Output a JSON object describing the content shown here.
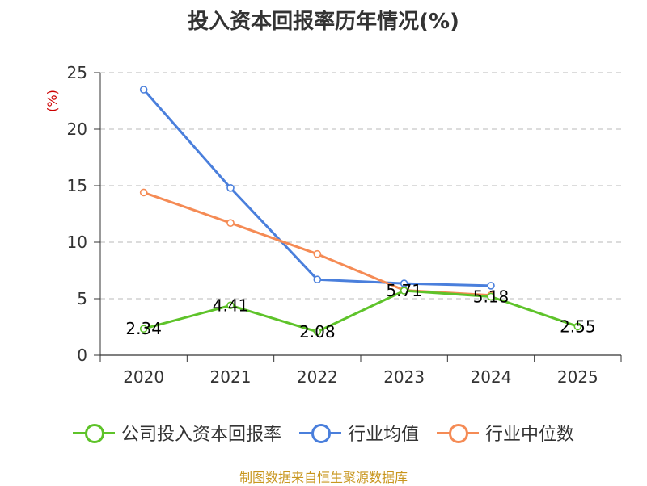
{
  "chart_data": {
    "type": "line",
    "title": "投入资本回报率历年情况(%)",
    "ylabel": "(%)",
    "xlabel": "",
    "categories": [
      "2020",
      "2021",
      "2022",
      "2023",
      "2024",
      "2025"
    ],
    "ylim": [
      0,
      25
    ],
    "yticks": [
      0,
      5,
      10,
      15,
      20,
      25
    ],
    "grid": true,
    "legend_position": "bottom",
    "series": [
      {
        "name": "公司投入资本回报率",
        "color": "#5ec32a",
        "values": [
          2.34,
          4.41,
          2.08,
          5.71,
          5.18,
          2.55
        ],
        "labels": [
          "2.34",
          "4.41",
          "2.08",
          "5.71",
          "5.18",
          "2.55"
        ]
      },
      {
        "name": "行业均值",
        "color": "#4a7fdc",
        "values": [
          23.5,
          14.8,
          6.7,
          6.35,
          6.15,
          null
        ]
      },
      {
        "name": "行业中位数",
        "color": "#f58b55",
        "values": [
          14.4,
          11.7,
          8.95,
          5.75,
          5.3,
          null
        ]
      }
    ],
    "source": "制图数据来自恒生聚源数据库"
  }
}
